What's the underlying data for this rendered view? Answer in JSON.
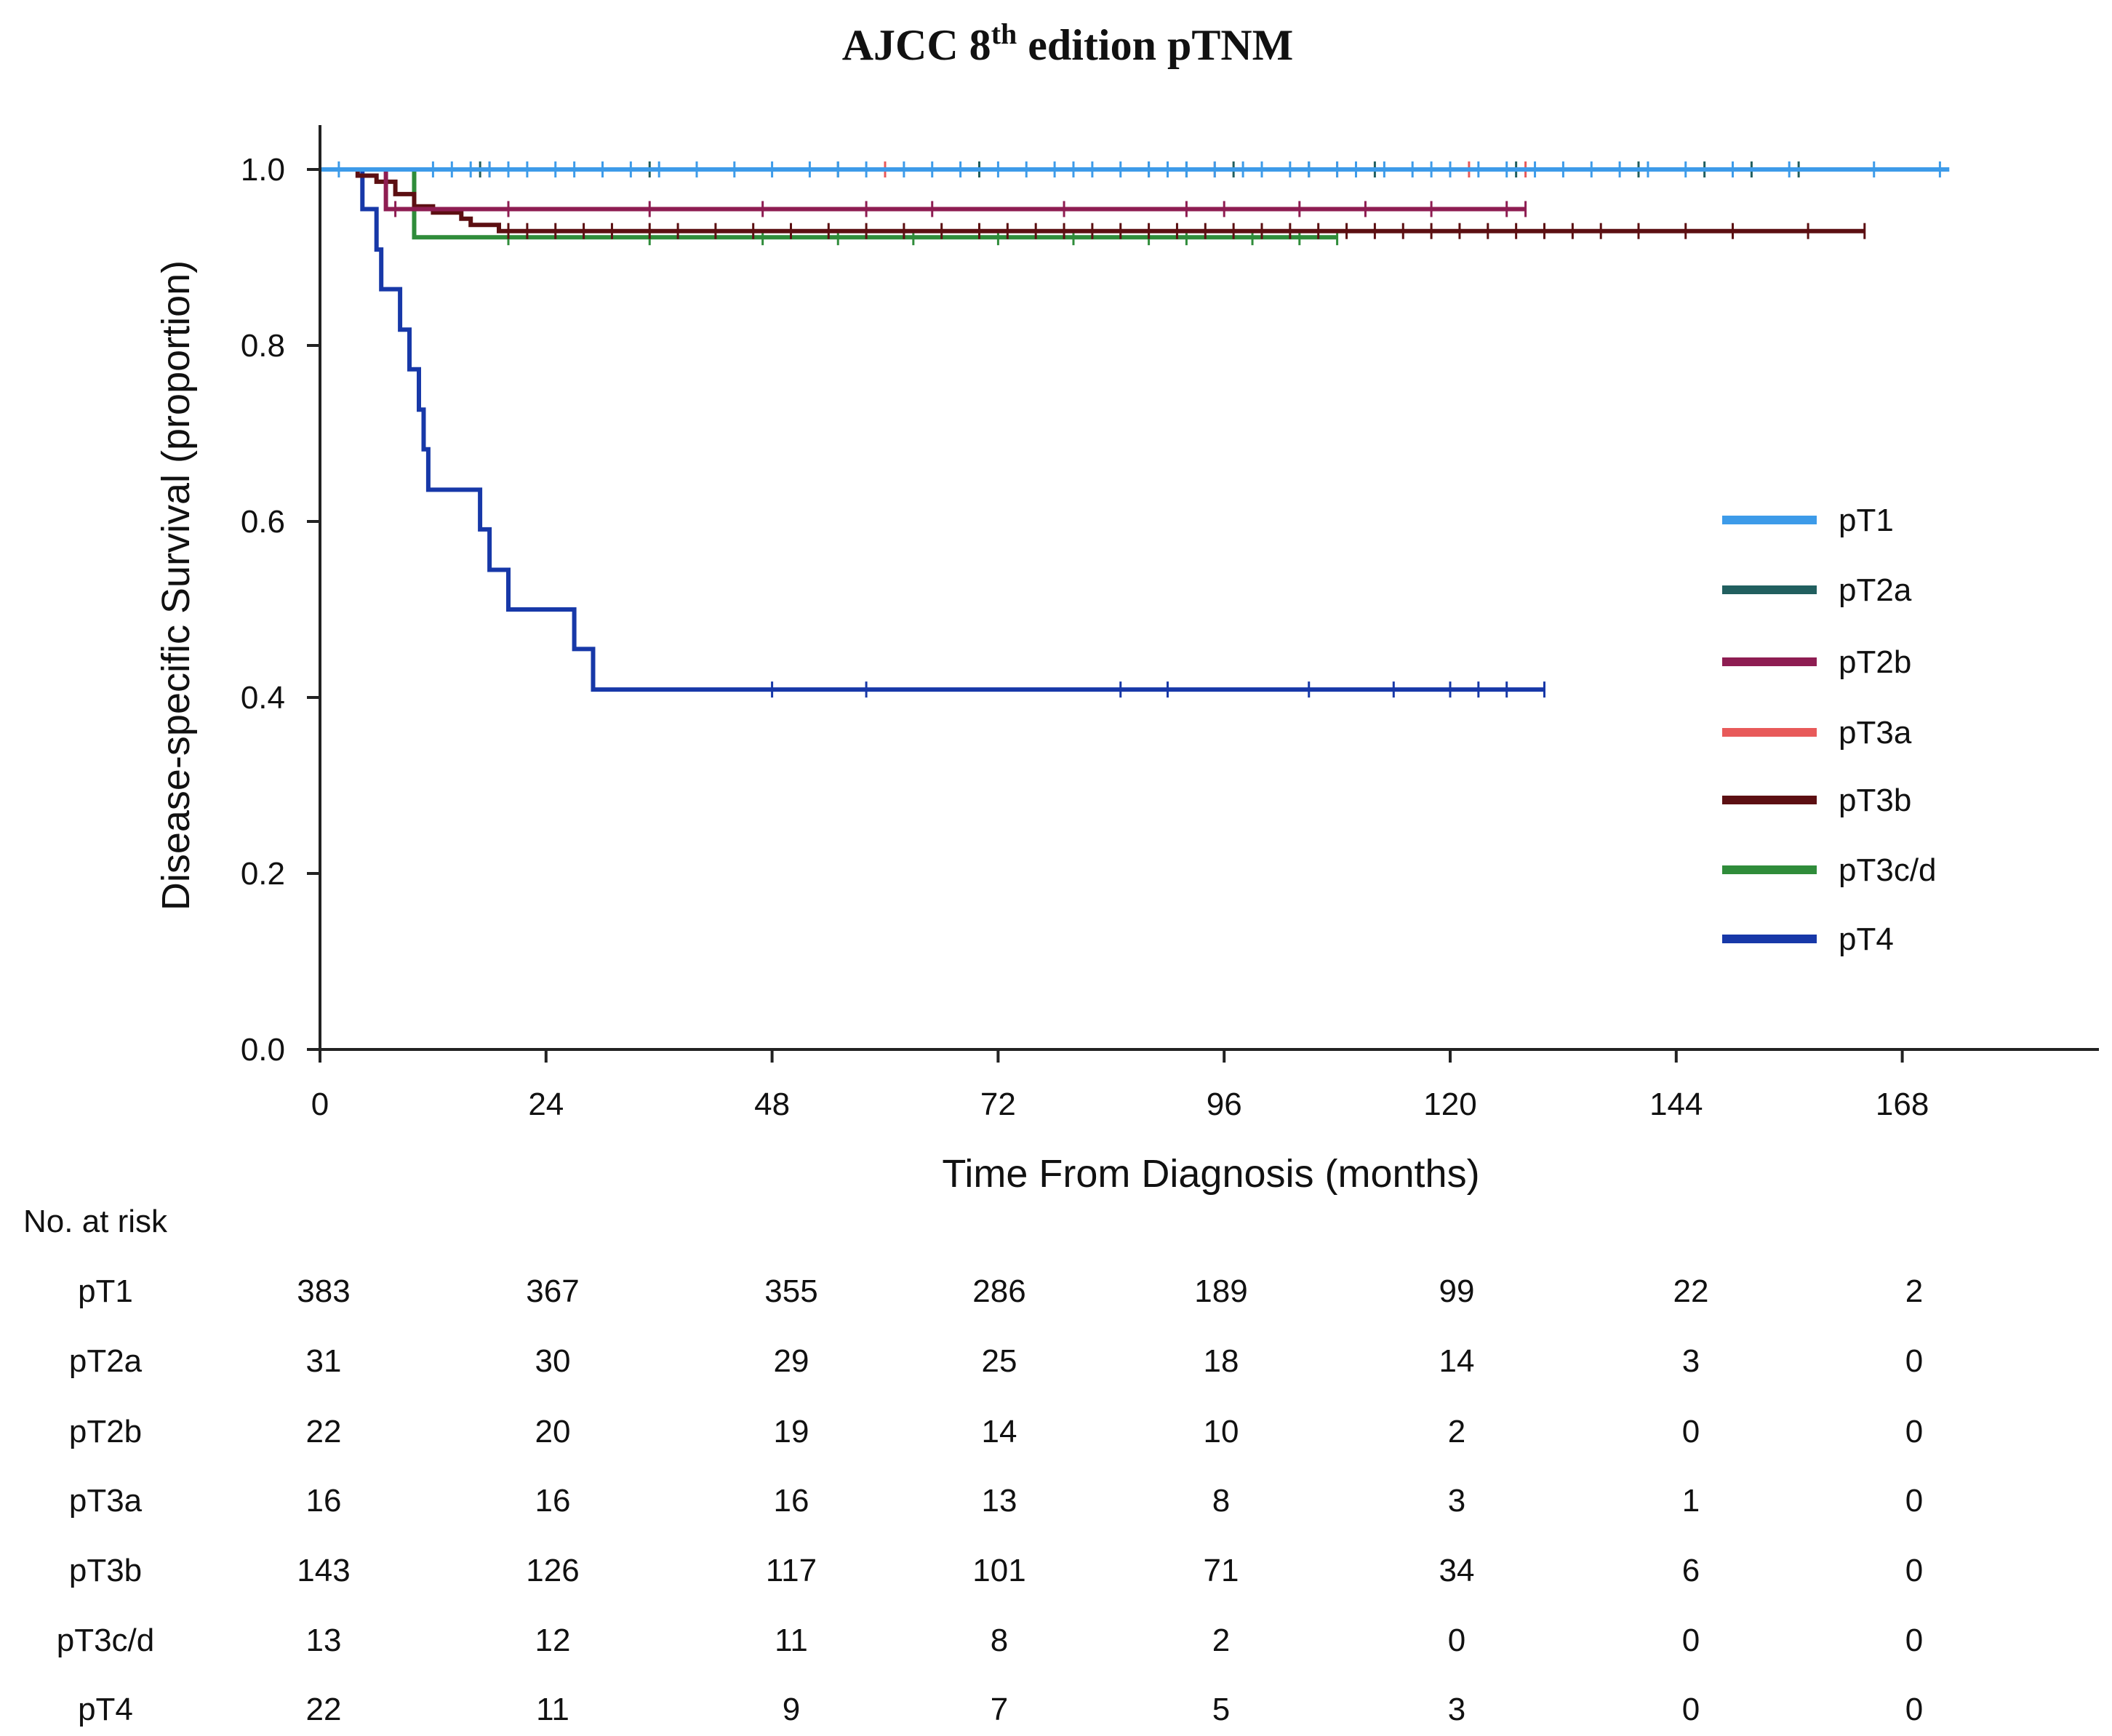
{
  "chart_data": {
    "type": "line",
    "subtype": "kaplan-meier",
    "title_main": "AJCC 8",
    "title_sup": "th",
    "title_rest": " edition pTNM",
    "xlabel": "Time From Diagnosis (months)",
    "ylabel": "Disease-specific Survival (proportion)",
    "xlim": [
      0,
      189
    ],
    "ylim": [
      0,
      1.0
    ],
    "x_ticks": [
      "0",
      "24",
      "48",
      "72",
      "96",
      "120",
      "144",
      "168"
    ],
    "x_tick_values": [
      0,
      24,
      48,
      72,
      96,
      120,
      144,
      168
    ],
    "y_ticks": [
      "0.0",
      "0.2",
      "0.4",
      "0.6",
      "0.8",
      "1.0"
    ],
    "y_tick_values": [
      0,
      0.2,
      0.4,
      0.6,
      0.8,
      1.0
    ],
    "grid": false,
    "legend_position": "right",
    "series": [
      {
        "name": "pT1",
        "color": "#3d9be9",
        "steps": [
          [
            0,
            1.0
          ],
          [
            173,
            1.0
          ]
        ],
        "censor": [
          2,
          12,
          14,
          16,
          18,
          20,
          22,
          25,
          27,
          30,
          33,
          36,
          40,
          44,
          48,
          52,
          55,
          58,
          62,
          65,
          68,
          72,
          75,
          78,
          80,
          82,
          85,
          88,
          90,
          92,
          95,
          98,
          100,
          103,
          105,
          108,
          110,
          113,
          116,
          118,
          120,
          123,
          126,
          129,
          132,
          135,
          138,
          141,
          145,
          150,
          156,
          165,
          172
        ]
      },
      {
        "name": "pT2a",
        "color": "#215f5f",
        "steps": [
          [
            0,
            1.0
          ],
          [
            157,
            1.0
          ]
        ],
        "censor": [
          17,
          35,
          55,
          70,
          88,
          92,
          97,
          105,
          112,
          127,
          140,
          147,
          152,
          157
        ]
      },
      {
        "name": "pT2b",
        "color": "#8e1d52",
        "steps": [
          [
            0,
            1.0
          ],
          [
            7,
            1.0
          ],
          [
            7,
            0.955
          ],
          [
            128,
            0.955
          ]
        ],
        "censor": [
          8,
          20,
          35,
          47,
          58,
          65,
          79,
          92,
          96,
          104,
          111,
          118,
          126,
          128
        ]
      },
      {
        "name": "pT3a",
        "color": "#e85a5a",
        "steps": [
          [
            0,
            1.0
          ],
          [
            128,
            1.0
          ]
        ],
        "censor": [
          18,
          40,
          60,
          80,
          95,
          108,
          122,
          128
        ]
      },
      {
        "name": "pT3b",
        "color": "#5c0f12",
        "steps": [
          [
            0,
            1.0
          ],
          [
            4,
            1.0
          ],
          [
            4,
            0.993
          ],
          [
            6,
            0.993
          ],
          [
            6,
            0.986
          ],
          [
            8,
            0.986
          ],
          [
            8,
            0.972
          ],
          [
            10,
            0.972
          ],
          [
            10,
            0.958
          ],
          [
            12,
            0.958
          ],
          [
            12,
            0.951
          ],
          [
            15,
            0.951
          ],
          [
            15,
            0.944
          ],
          [
            16,
            0.944
          ],
          [
            16,
            0.937
          ],
          [
            19,
            0.937
          ],
          [
            19,
            0.93
          ],
          [
            164,
            0.93
          ]
        ],
        "censor": [
          20,
          22,
          25,
          28,
          31,
          35,
          38,
          42,
          46,
          50,
          54,
          58,
          62,
          66,
          70,
          73,
          76,
          79,
          82,
          85,
          88,
          91,
          94,
          97,
          100,
          103,
          106,
          109,
          112,
          115,
          118,
          121,
          124,
          127,
          130,
          133,
          136,
          140,
          145,
          150,
          158,
          164
        ]
      },
      {
        "name": "pT3c/d",
        "color": "#2f8c3a",
        "steps": [
          [
            0,
            1.0
          ],
          [
            10,
            1.0
          ],
          [
            10,
            0.923
          ],
          [
            108,
            0.923
          ]
        ],
        "censor": [
          20,
          35,
          47,
          55,
          63,
          72,
          80,
          88,
          92,
          99,
          104,
          108
        ]
      },
      {
        "name": "pT4",
        "color": "#1738a8",
        "steps": [
          [
            0,
            1.0
          ],
          [
            4.5,
            1.0
          ],
          [
            4.5,
            0.955
          ],
          [
            6,
            0.955
          ],
          [
            6,
            0.909
          ],
          [
            6.5,
            0.909
          ],
          [
            6.5,
            0.864
          ],
          [
            8.5,
            0.864
          ],
          [
            8.5,
            0.818
          ],
          [
            9.5,
            0.818
          ],
          [
            9.5,
            0.773
          ],
          [
            10.5,
            0.773
          ],
          [
            10.5,
            0.727
          ],
          [
            11,
            0.727
          ],
          [
            11,
            0.682
          ],
          [
            11.5,
            0.682
          ],
          [
            11.5,
            0.636
          ],
          [
            17,
            0.636
          ],
          [
            17,
            0.591
          ],
          [
            18,
            0.591
          ],
          [
            18,
            0.545
          ],
          [
            20,
            0.545
          ],
          [
            20,
            0.5
          ],
          [
            27,
            0.5
          ],
          [
            27,
            0.455
          ],
          [
            29,
            0.455
          ],
          [
            29,
            0.409
          ],
          [
            130,
            0.409
          ]
        ],
        "censor": [
          48,
          58,
          85,
          90,
          105,
          114,
          120,
          123,
          126,
          130
        ]
      }
    ],
    "risk_table": {
      "header": "No. at risk",
      "rows": [
        {
          "label": "pT1",
          "values": [
            "383",
            "367",
            "355",
            "286",
            "189",
            "99",
            "22",
            "2"
          ]
        },
        {
          "label": "pT2a",
          "values": [
            "31",
            "30",
            "29",
            "25",
            "18",
            "14",
            "3",
            "0"
          ]
        },
        {
          "label": "pT2b",
          "values": [
            "22",
            "20",
            "19",
            "14",
            "10",
            "2",
            "0",
            "0"
          ]
        },
        {
          "label": "pT3a",
          "values": [
            "16",
            "16",
            "16",
            "13",
            "8",
            "3",
            "1",
            "0"
          ]
        },
        {
          "label": "pT3b",
          "values": [
            "143",
            "126",
            "117",
            "101",
            "71",
            "34",
            "6",
            "0"
          ]
        },
        {
          "label": "pT3c/d",
          "values": [
            "13",
            "12",
            "11",
            "8",
            "2",
            "0",
            "0",
            "0"
          ]
        },
        {
          "label": "pT4",
          "values": [
            "22",
            "11",
            "9",
            "7",
            "5",
            "3",
            "0",
            "0"
          ]
        }
      ]
    }
  }
}
